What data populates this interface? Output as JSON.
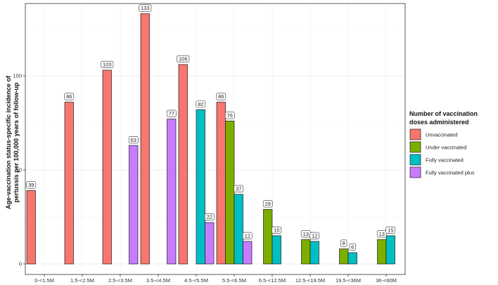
{
  "chart_data": {
    "type": "bar",
    "title": "",
    "xlabel": "",
    "ylabel_lines": [
      "Age-vaccination status-specific incidence of",
      "pertussis per 100,000 years of follow-up"
    ],
    "ylim": [
      0,
      138
    ],
    "yticks": [
      0,
      50,
      100
    ],
    "grid": true,
    "legend_position": "right",
    "legend_title_lines": [
      "Number of vaccination",
      "doses administered"
    ],
    "categories": [
      "0-<1.5M",
      "1.5-<2.5M",
      "2.5-<3.5M",
      "3.5-<4.5M",
      "4.5-<5.5M",
      "5.5-<6.5M",
      "6.5-<12.5M",
      "12.5-<19.5M",
      "19.5-<36M",
      "36-<60M"
    ],
    "series": [
      {
        "name": "Unvaccinated",
        "color": "#F8766D",
        "values": [
          39,
          86,
          103,
          133,
          106,
          86,
          null,
          null,
          null,
          null
        ]
      },
      {
        "name": "Under vaccinated",
        "color": "#7CAE00",
        "values": [
          null,
          null,
          null,
          null,
          null,
          76,
          29,
          13,
          8,
          13
        ]
      },
      {
        "name": "Fully vaccinated",
        "color": "#00BFC4",
        "values": [
          null,
          null,
          null,
          null,
          82,
          37,
          15,
          12,
          6,
          15
        ]
      },
      {
        "name": "Fully vaccinated plus",
        "color": "#C77CFF",
        "values": [
          null,
          null,
          63,
          77,
          22,
          12,
          null,
          null,
          null,
          null
        ]
      }
    ]
  }
}
